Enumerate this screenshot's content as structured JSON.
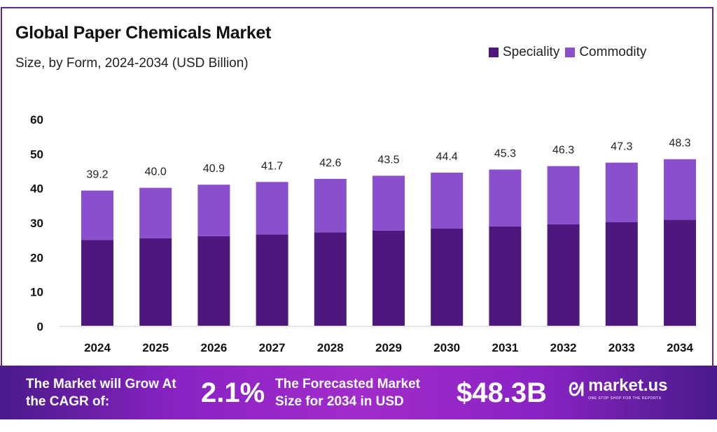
{
  "chart_data": {
    "type": "bar",
    "stacked": true,
    "title": "Global Paper Chemicals Market",
    "subtitle": "Size, by Form, 2024-2034 (USD Billion)",
    "categories": [
      "2024",
      "2025",
      "2026",
      "2027",
      "2028",
      "2029",
      "2030",
      "2031",
      "2032",
      "2033",
      "2034"
    ],
    "series": [
      {
        "name": "Speciality",
        "color": "#4e177e",
        "values": [
          24.9,
          25.4,
          26.0,
          26.5,
          27.1,
          27.6,
          28.2,
          28.8,
          29.4,
          30.0,
          30.7
        ]
      },
      {
        "name": "Commodity",
        "color": "#8a4fcc",
        "values": [
          14.3,
          14.6,
          14.9,
          15.2,
          15.5,
          15.9,
          16.2,
          16.5,
          16.9,
          17.3,
          17.6
        ]
      }
    ],
    "totals": [
      "39.2",
      "40.0",
      "40.9",
      "41.7",
      "42.6",
      "43.5",
      "44.4",
      "45.3",
      "46.3",
      "47.3",
      "48.3"
    ],
    "yticks": [
      "0",
      "10",
      "20",
      "30",
      "40",
      "50",
      "60"
    ],
    "ylim": [
      0,
      60
    ],
    "grid": false,
    "legend_position": "top-right"
  },
  "footer": {
    "cagr_text": "The Market will Grow At the CAGR of:",
    "cagr_value": "2.1%",
    "forecast_text": "The Forecasted Market Size for 2034 in USD",
    "forecast_value": "$48.3B",
    "brand": "market.us",
    "tagline": "ONE STOP SHOP FOR THE REPORTS"
  }
}
